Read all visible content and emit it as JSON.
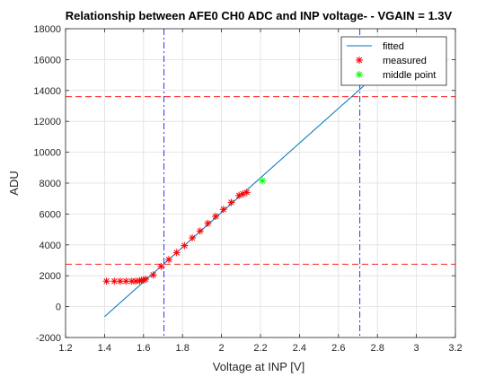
{
  "chart_data": {
    "type": "line",
    "title": "Relationship between AFE0 CH0 ADC and INP voltage- - VGAIN = 1.3V",
    "xlabel": "Voltage at INP [V]",
    "ylabel": "ADU",
    "xlim": [
      1.2,
      3.2
    ],
    "ylim": [
      -2000,
      18000
    ],
    "xticks": [
      1.2,
      1.4,
      1.6,
      1.8,
      2,
      2.2,
      2.4,
      2.6,
      2.8,
      3,
      3.2
    ],
    "xtick_labels": [
      "1.2",
      "1.4",
      "1.6",
      "1.8",
      "2",
      "2.2",
      "2.4",
      "2.6",
      "2.8",
      "3",
      "3.2"
    ],
    "yticks": [
      -2000,
      0,
      2000,
      4000,
      6000,
      8000,
      10000,
      12000,
      14000,
      16000,
      18000
    ],
    "ytick_labels": [
      "-2000",
      "0",
      "2000",
      "4000",
      "6000",
      "8000",
      "10000",
      "12000",
      "14000",
      "16000",
      "18000"
    ],
    "grid": true,
    "legend_position": "top-right",
    "series": [
      {
        "name": "fitted",
        "kind": "line",
        "color": "#0072BD",
        "x": [
          1.4,
          2.73
        ],
        "y": [
          -650,
          14300
        ]
      },
      {
        "name": "measured",
        "kind": "marker",
        "marker": "*",
        "color": "#FF0000",
        "x": [
          1.41,
          1.45,
          1.48,
          1.51,
          1.54,
          1.56,
          1.58,
          1.59,
          1.6,
          1.61,
          1.65,
          1.69,
          1.73,
          1.77,
          1.81,
          1.85,
          1.89,
          1.93,
          1.97,
          2.01,
          2.05,
          2.09,
          2.11,
          2.13
        ],
        "y": [
          1650,
          1650,
          1650,
          1650,
          1650,
          1650,
          1680,
          1700,
          1720,
          1780,
          2050,
          2600,
          3050,
          3500,
          3950,
          4450,
          4900,
          5400,
          5850,
          6300,
          6750,
          7200,
          7300,
          7400
        ]
      },
      {
        "name": "middle point",
        "kind": "marker",
        "marker": "*",
        "color": "#00FF00",
        "x": [
          2.21
        ],
        "y": [
          8150
        ]
      }
    ],
    "reference_lines": [
      {
        "orientation": "vertical",
        "value": 1.705,
        "color": "#0000FF",
        "style": "dash-dot"
      },
      {
        "orientation": "vertical",
        "value": 2.71,
        "color": "#0000FF",
        "style": "dash-dot"
      },
      {
        "orientation": "horizontal",
        "value": 13600,
        "color": "#FF0000",
        "style": "dashed"
      },
      {
        "orientation": "horizontal",
        "value": 2750,
        "color": "#FF0000",
        "style": "dashed"
      }
    ]
  }
}
